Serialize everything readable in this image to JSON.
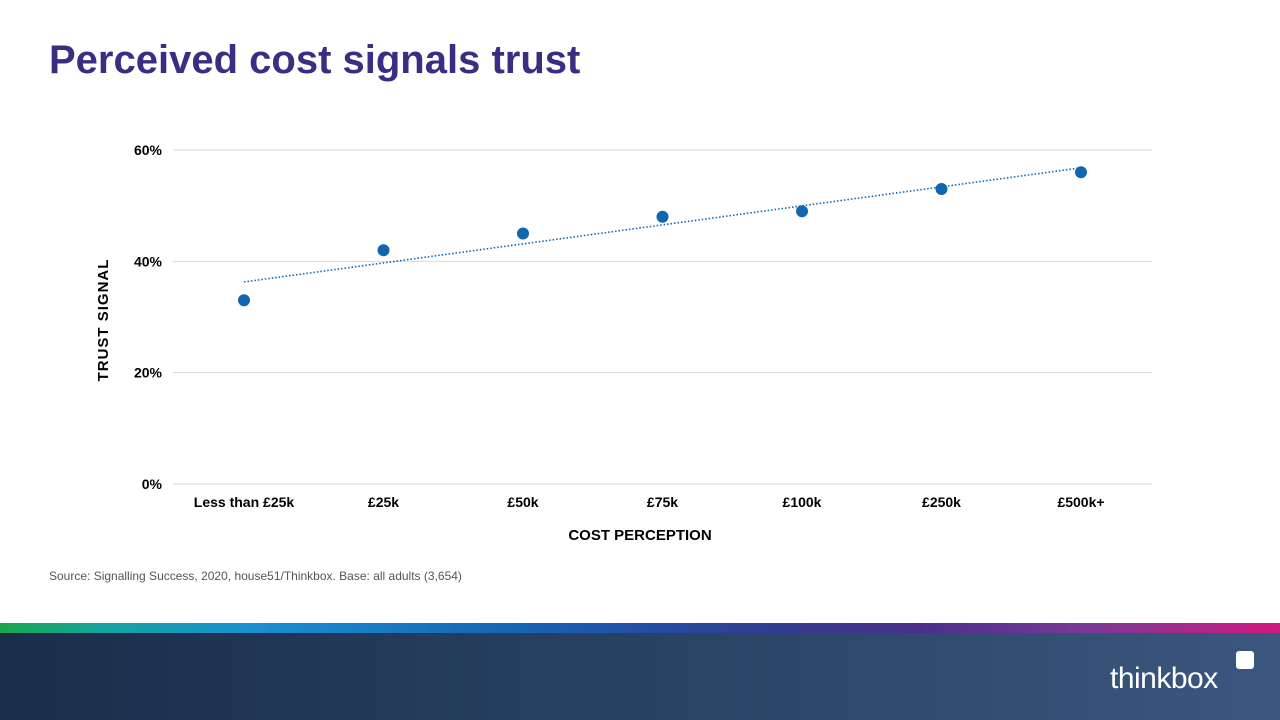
{
  "slide": {
    "title": "Perceived cost signals trust",
    "source": "Source: Signalling Success, 2020, house51/Thinkbox. Base: all adults (3,654)",
    "logo_text": "thinkbox"
  },
  "colors": {
    "title": "#3a2e82",
    "marker": "#0f67b1",
    "trendline": "#0f67b1",
    "gridline": "#d9d9d9"
  },
  "chart_data": {
    "type": "scatter",
    "title": "",
    "xlabel": "COST PERCEPTION",
    "ylabel": "TRUST SIGNAL",
    "categories": [
      "Less than £25k",
      "£25k",
      "£50k",
      "£75k",
      "£100k",
      "£250k",
      "£500k+"
    ],
    "series": [
      {
        "values": [
          33,
          42,
          45,
          48,
          49,
          53,
          56
        ]
      }
    ],
    "trendline": {
      "type": "linear",
      "style": "dotted",
      "start": 36.3,
      "end": 56.8
    },
    "ylim": [
      0,
      60
    ],
    "yticks": [
      0,
      20,
      40,
      60
    ],
    "ytick_labels": [
      "0%",
      "20%",
      "40%",
      "60%"
    ],
    "grid": true,
    "legend": "none"
  }
}
